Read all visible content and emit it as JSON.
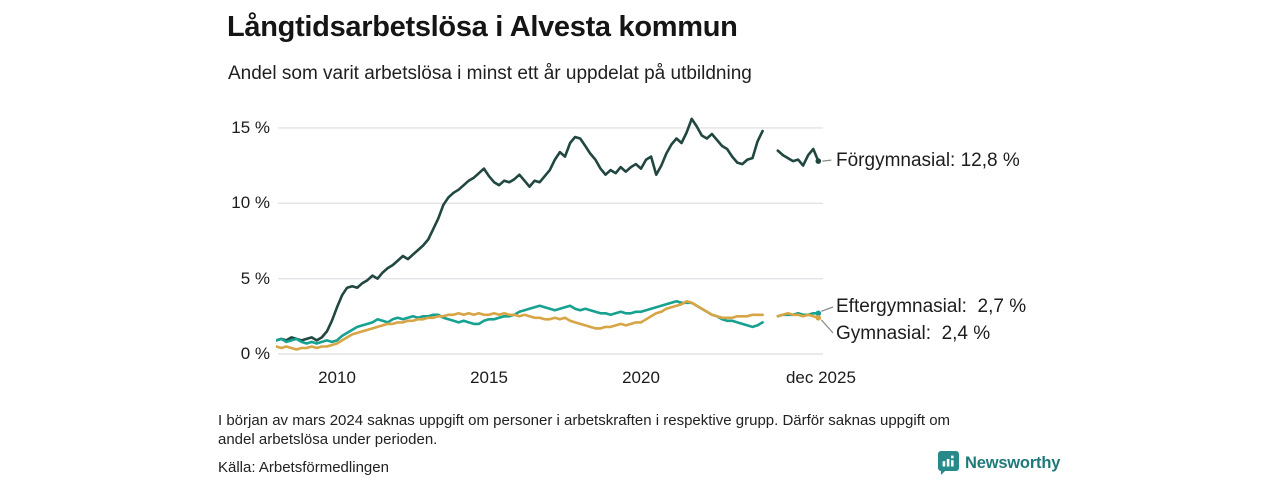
{
  "header": {
    "title": "Långtidsarbetslösa i Alvesta kommun",
    "subtitle": "Andel som varit arbetslösa i minst ett år uppdelat på utbildning"
  },
  "chart_data": {
    "type": "line",
    "title": "Långtidsarbetslösa i Alvesta kommun",
    "subtitle": "Andel som varit arbetslösa i minst ett år uppdelat på utbildning",
    "x_start": 2008.0,
    "x_step": 0.16667,
    "xlim": [
      2008.0,
      2026.0
    ],
    "ylim": [
      0,
      16
    ],
    "grid": "horizontal",
    "y_ticks": [
      0,
      5,
      10,
      15
    ],
    "y_tick_labels": [
      "0 %",
      "5 %",
      "10 %",
      "15 %"
    ],
    "x_tick_years": [
      2010,
      2015,
      2020,
      2025.92
    ],
    "x_tick_labels": [
      "2010",
      "2015",
      "2020",
      "dec 2025"
    ],
    "gap_period": "mars 2024",
    "series": [
      {
        "name": "Förgymnasial",
        "color": "#214740",
        "last_value_label": "12,8 %",
        "end_label": "Förgymnasial: 12,8 %",
        "values": [
          0.9,
          1.0,
          0.9,
          1.1,
          1.0,
          0.9,
          1.0,
          1.1,
          0.9,
          1.1,
          1.5,
          2.2,
          3.1,
          3.9,
          4.4,
          4.5,
          4.4,
          4.7,
          4.9,
          5.2,
          5.0,
          5.4,
          5.7,
          5.9,
          6.2,
          6.5,
          6.3,
          6.6,
          6.9,
          7.2,
          7.6,
          8.3,
          9.0,
          9.9,
          10.4,
          10.7,
          10.9,
          11.2,
          11.5,
          11.7,
          12.0,
          12.3,
          11.8,
          11.4,
          11.2,
          11.5,
          11.4,
          11.6,
          11.9,
          11.5,
          11.1,
          11.5,
          11.4,
          11.8,
          12.2,
          12.9,
          13.4,
          13.1,
          14.0,
          14.4,
          14.3,
          13.8,
          13.3,
          12.9,
          12.3,
          11.9,
          12.2,
          12.0,
          12.4,
          12.1,
          12.4,
          12.6,
          12.3,
          12.9,
          13.1,
          11.9,
          12.5,
          13.3,
          13.9,
          14.3,
          14.0,
          14.7,
          15.6,
          15.1,
          14.5,
          14.3,
          14.6,
          14.2,
          13.8,
          13.6,
          13.1,
          12.7,
          12.6,
          12.9,
          13.0,
          14.1,
          14.8,
          null,
          null,
          13.5,
          13.2,
          13.0,
          12.8,
          12.9,
          12.5,
          13.2,
          13.6,
          12.8
        ]
      },
      {
        "name": "Eftergymnasial",
        "color": "#17a191",
        "last_value_label": "2,7 %",
        "end_label": "Eftergymnasial:  2,7 %",
        "values": [
          0.9,
          1.0,
          0.8,
          0.9,
          1.0,
          0.8,
          0.7,
          0.8,
          0.7,
          0.8,
          0.9,
          0.8,
          0.9,
          1.2,
          1.4,
          1.6,
          1.8,
          1.9,
          2.0,
          2.1,
          2.3,
          2.2,
          2.1,
          2.3,
          2.4,
          2.3,
          2.4,
          2.5,
          2.4,
          2.5,
          2.5,
          2.6,
          2.6,
          2.4,
          2.3,
          2.2,
          2.1,
          2.2,
          2.1,
          2.0,
          2.0,
          2.2,
          2.3,
          2.3,
          2.4,
          2.5,
          2.5,
          2.6,
          2.8,
          2.9,
          3.0,
          3.1,
          3.2,
          3.1,
          3.0,
          2.9,
          3.0,
          3.1,
          3.2,
          3.0,
          2.9,
          3.0,
          2.9,
          2.8,
          2.7,
          2.7,
          2.6,
          2.7,
          2.8,
          2.7,
          2.7,
          2.8,
          2.8,
          2.9,
          3.0,
          3.1,
          3.2,
          3.3,
          3.4,
          3.5,
          3.4,
          3.4,
          3.4,
          3.2,
          3.0,
          2.8,
          2.6,
          2.5,
          2.3,
          2.2,
          2.2,
          2.1,
          2.0,
          1.9,
          1.8,
          1.9,
          2.1,
          null,
          null,
          2.5,
          2.6,
          2.6,
          2.6,
          2.7,
          2.6,
          2.6,
          2.7,
          2.7
        ]
      },
      {
        "name": "Gymnasial",
        "color": "#d7a546",
        "last_value_label": "2,4 %",
        "end_label": "Gymnasial:  2,4 %",
        "values": [
          0.5,
          0.4,
          0.5,
          0.4,
          0.3,
          0.4,
          0.4,
          0.5,
          0.4,
          0.5,
          0.5,
          0.6,
          0.7,
          0.9,
          1.1,
          1.3,
          1.4,
          1.5,
          1.6,
          1.7,
          1.8,
          1.9,
          2.0,
          2.0,
          2.1,
          2.1,
          2.2,
          2.2,
          2.3,
          2.3,
          2.4,
          2.4,
          2.5,
          2.5,
          2.6,
          2.6,
          2.7,
          2.6,
          2.7,
          2.6,
          2.7,
          2.6,
          2.6,
          2.7,
          2.6,
          2.7,
          2.6,
          2.6,
          2.5,
          2.6,
          2.5,
          2.4,
          2.4,
          2.3,
          2.3,
          2.4,
          2.3,
          2.4,
          2.2,
          2.1,
          2.0,
          1.9,
          1.8,
          1.7,
          1.7,
          1.8,
          1.8,
          1.9,
          2.0,
          1.9,
          2.0,
          2.1,
          2.1,
          2.3,
          2.5,
          2.7,
          2.8,
          3.0,
          3.1,
          3.2,
          3.3,
          3.5,
          3.4,
          3.2,
          3.0,
          2.8,
          2.6,
          2.5,
          2.4,
          2.4,
          2.4,
          2.5,
          2.5,
          2.5,
          2.6,
          2.6,
          2.6,
          null,
          null,
          2.5,
          2.6,
          2.7,
          2.6,
          2.6,
          2.5,
          2.6,
          2.5,
          2.4
        ]
      }
    ],
    "colors": {
      "grid": "#e3e3e8",
      "leader": "#8a8a8a",
      "axis_text": "#1c1c1c"
    }
  },
  "footer": {
    "note_line1": "I början av mars 2024 saknas uppgift om personer i arbetskraften i respektive grupp. Därför saknas uppgift om",
    "note_line2": "andel arbetslösa under perioden.",
    "source": "Källa: Arbetsförmedlingen",
    "logo_text": "Newsworthy",
    "logo_color": "#28898a"
  }
}
